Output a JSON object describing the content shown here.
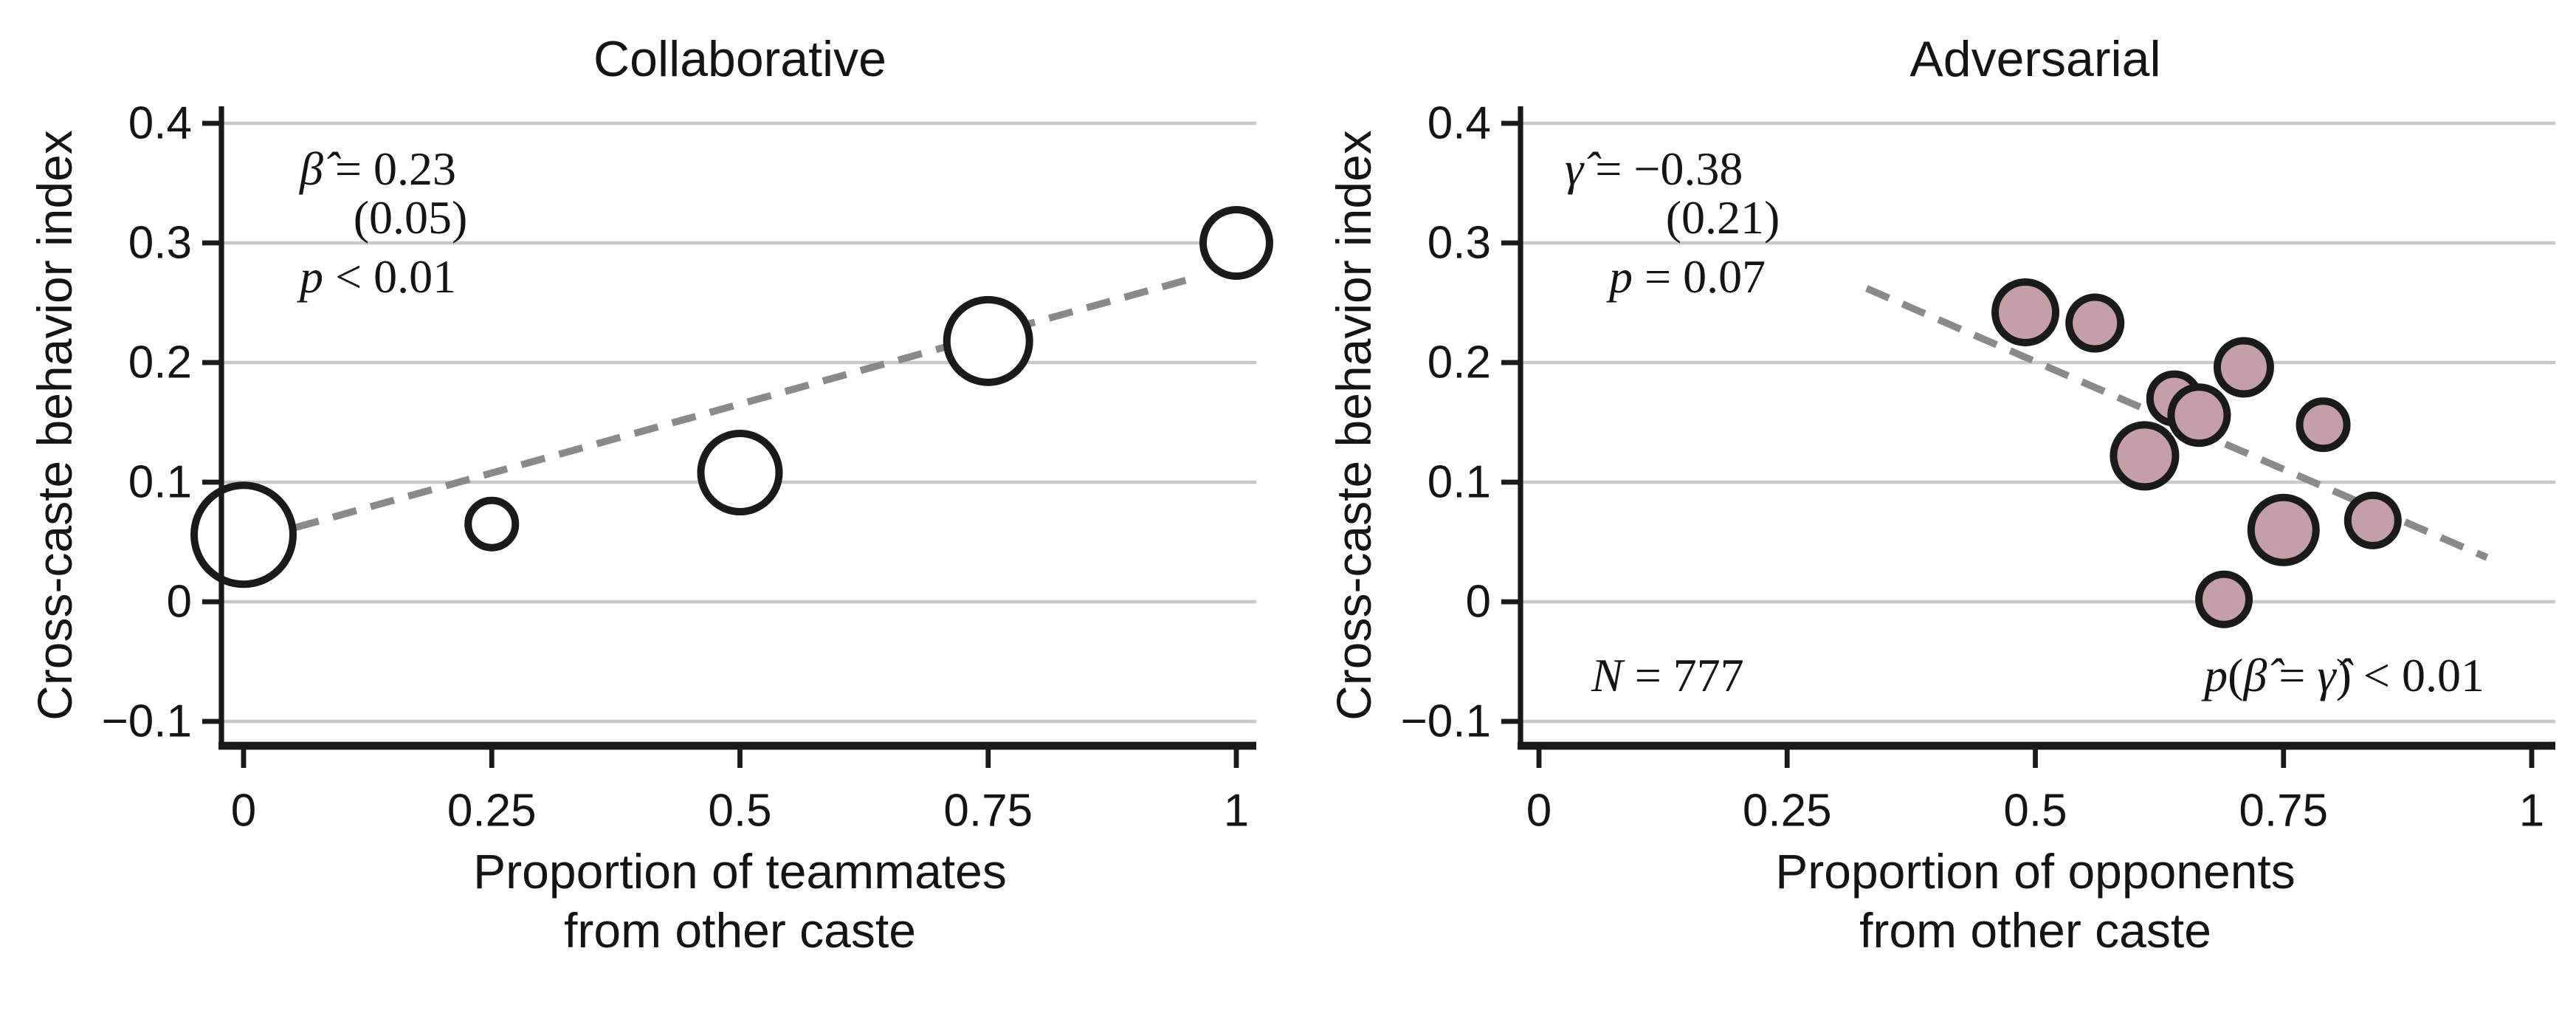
{
  "figure_background": "#ffffff",
  "colors": {
    "axis": "#1a1a1a",
    "gridline": "#c8c8c8",
    "trend_line": "#8a8a8a",
    "bubble_stroke": "#1a1a1a",
    "left_bubble_fill": "#ffffff",
    "right_bubble_fill": "#c59fa7",
    "text": "#141414"
  },
  "chart_data": [
    {
      "type": "scatter",
      "title": "Collaborative",
      "xlabel_lines": [
        "Proportion of teammates",
        "from other caste"
      ],
      "ylabel": "Cross-caste behavior index",
      "xlim": [
        0,
        1
      ],
      "ylim": [
        -0.1,
        0.4
      ],
      "x_tick_values": [
        0,
        0.25,
        0.5,
        0.75,
        1
      ],
      "x_tick_labels": [
        "0",
        "0.25",
        "0.5",
        "0.75",
        "1"
      ],
      "y_tick_values": [
        0.4,
        0.3,
        0.2,
        0.1,
        0,
        -0.1
      ],
      "y_tick_labels": [
        "0.4",
        "0.3",
        "0.2",
        "0.1",
        "0",
        "−0.1"
      ],
      "grid": true,
      "legend": "none",
      "marker_fill": "#ffffff",
      "points": [
        {
          "x": 0.0,
          "y": 0.056,
          "r": 33.5
        },
        {
          "x": 0.25,
          "y": 0.065,
          "r": 16.0
        },
        {
          "x": 0.5,
          "y": 0.108,
          "r": 26.5
        },
        {
          "x": 0.75,
          "y": 0.218,
          "r": 28.0
        },
        {
          "x": 1.0,
          "y": 0.3,
          "r": 22.5
        }
      ],
      "trend": {
        "style": "dashed",
        "x1": 0.052,
        "y1": 0.062,
        "x2": 0.963,
        "y2": 0.272
      },
      "stats": [
        {
          "align": "start",
          "segs": [
            {
              "t": "β̂",
              "i": true
            },
            {
              "t": " = 0.23",
              "i": false
            }
          ]
        },
        {
          "align": "middle",
          "segs": [
            {
              "t": "(0.05)",
              "i": false
            }
          ]
        },
        {
          "align": "start",
          "segs": [
            {
              "t": "p",
              "i": true
            },
            {
              "t": " < 0.01",
              "i": false
            }
          ]
        }
      ],
      "notes": []
    },
    {
      "type": "scatter",
      "title": "Adversarial",
      "xlabel_lines": [
        "Proportion of opponents",
        "from other caste"
      ],
      "ylabel": "Cross-caste behavior index",
      "xlim": [
        0,
        1
      ],
      "ylim": [
        -0.1,
        0.4
      ],
      "x_tick_values": [
        0,
        0.25,
        0.5,
        0.75,
        1
      ],
      "x_tick_labels": [
        "0",
        "0.25",
        "0.5",
        "0.75",
        "1"
      ],
      "y_tick_values": [
        0.4,
        0.3,
        0.2,
        0.1,
        0,
        -0.1
      ],
      "y_tick_labels": [
        "0.4",
        "0.3",
        "0.2",
        "0.1",
        "0",
        "−0.1"
      ],
      "grid": true,
      "legend": "none",
      "marker_fill": "#c59fa7",
      "points": [
        {
          "x": 0.49,
          "y": 0.242,
          "r": 20.5
        },
        {
          "x": 0.56,
          "y": 0.233,
          "r": 17.5
        },
        {
          "x": 0.64,
          "y": 0.17,
          "r": 16.5
        },
        {
          "x": 0.665,
          "y": 0.156,
          "r": 19.0
        },
        {
          "x": 0.71,
          "y": 0.196,
          "r": 18.0
        },
        {
          "x": 0.61,
          "y": 0.122,
          "r": 21.0
        },
        {
          "x": 0.79,
          "y": 0.148,
          "r": 16.0
        },
        {
          "x": 0.75,
          "y": 0.06,
          "r": 22.0
        },
        {
          "x": 0.84,
          "y": 0.068,
          "r": 17.0
        },
        {
          "x": 0.69,
          "y": 0.002,
          "r": 17.0
        }
      ],
      "trend": {
        "style": "dashed",
        "x1": 0.33,
        "y1": 0.262,
        "x2": 0.955,
        "y2": 0.037
      },
      "stats": [
        {
          "align": "start",
          "segs": [
            {
              "t": "γ̂",
              "i": true
            },
            {
              "t": " = −0.38",
              "i": false
            }
          ]
        },
        {
          "align": "middle",
          "segs": [
            {
              "t": "(0.21)",
              "i": false
            }
          ]
        },
        {
          "align": "start",
          "segs": [
            {
              "t": "p",
              "i": true
            },
            {
              "t": " = 0.07",
              "i": false
            }
          ]
        }
      ],
      "notes": [
        {
          "id": "n-obs",
          "anchor": "start",
          "segs": [
            {
              "t": "N",
              "i": true
            },
            {
              "t": " = 777",
              "i": false
            }
          ]
        },
        {
          "id": "p-equality",
          "anchor": "end",
          "segs": [
            {
              "t": "p",
              "i": true
            },
            {
              "t": "(",
              "i": false
            },
            {
              "t": "β̂",
              "i": true
            },
            {
              "t": " = ",
              "i": false
            },
            {
              "t": "γ̂",
              "i": true
            },
            {
              "t": ") < 0.01",
              "i": false
            }
          ]
        }
      ]
    }
  ]
}
